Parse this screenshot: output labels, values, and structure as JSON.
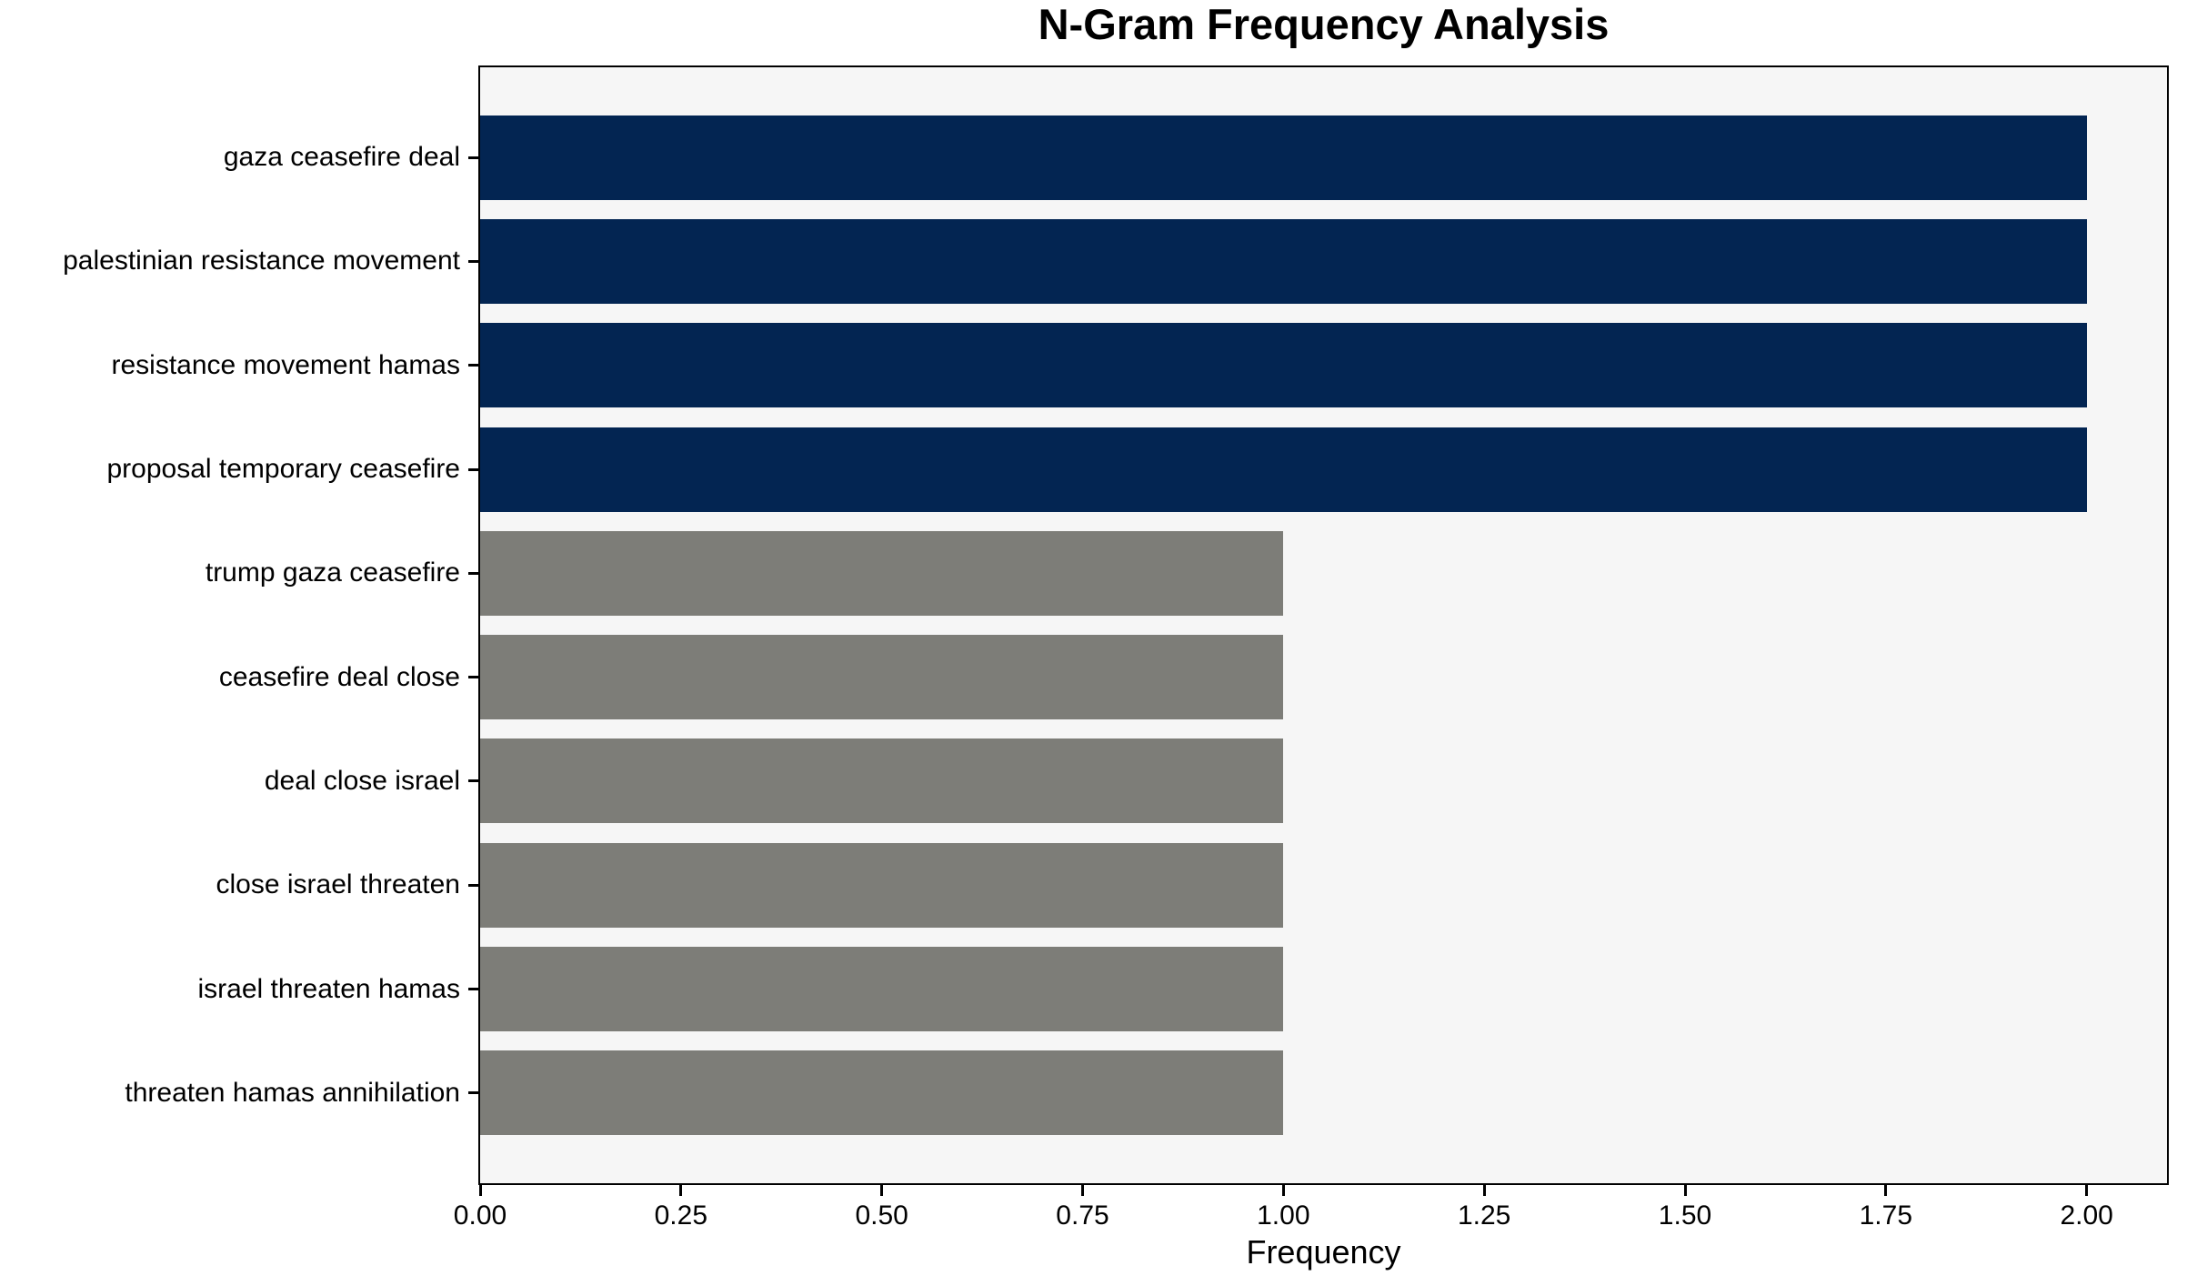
{
  "chart_data": {
    "type": "bar",
    "orientation": "horizontal",
    "title": "N-Gram Frequency Analysis",
    "xlabel": "Frequency",
    "ylabel": "",
    "categories": [
      "gaza ceasefire deal",
      "palestinian resistance movement",
      "resistance movement hamas",
      "proposal temporary ceasefire",
      "trump gaza ceasefire",
      "ceasefire deal close",
      "deal close israel",
      "close israel threaten",
      "israel threaten hamas",
      "threaten hamas annihilation"
    ],
    "values": [
      2,
      2,
      2,
      2,
      1,
      1,
      1,
      1,
      1,
      1
    ],
    "bar_colors": [
      "#032552",
      "#032552",
      "#032552",
      "#032552",
      "#7d7d78",
      "#7d7d78",
      "#7d7d78",
      "#7d7d78",
      "#7d7d78",
      "#7d7d78"
    ],
    "x_ticks": [
      "0.00",
      "0.25",
      "0.50",
      "0.75",
      "1.00",
      "1.25",
      "1.50",
      "1.75",
      "2.00"
    ],
    "x_tick_values": [
      0,
      0.25,
      0.5,
      0.75,
      1,
      1.25,
      1.5,
      1.75,
      2
    ],
    "xlim": [
      0,
      2.1
    ],
    "grid": false,
    "legend": null,
    "colors": {
      "high_freq_bar": "#032552",
      "low_freq_bar": "#7d7d78",
      "plot_background": "#f6f6f6",
      "figure_background": "#ffffff",
      "spine": "#000000",
      "text": "#000000"
    }
  }
}
